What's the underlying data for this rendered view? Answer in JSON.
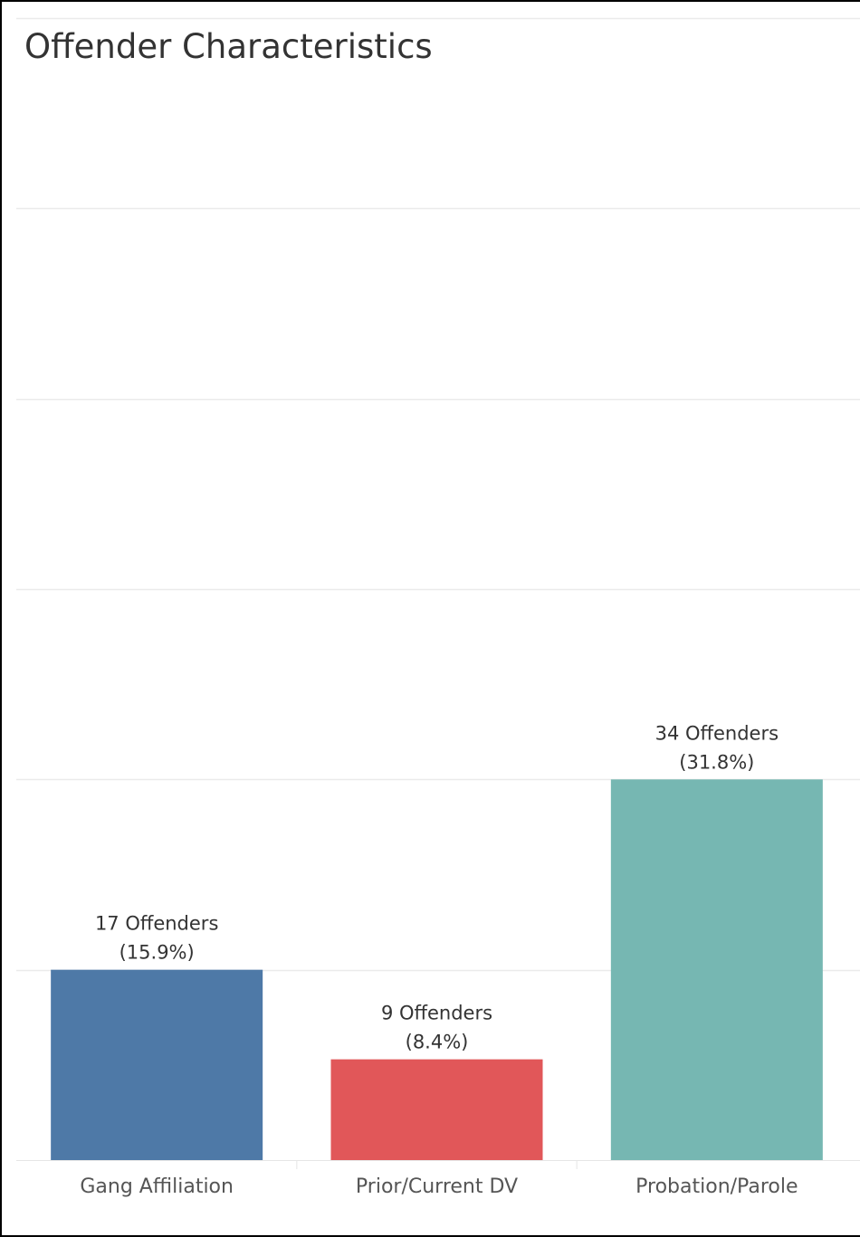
{
  "chart_data": {
    "type": "bar",
    "title": "Offender Characteristics",
    "xlabel": "",
    "ylabel": "",
    "ylim": [
      0,
      102
    ],
    "grid": true,
    "categories": [
      "Gang Affiliation",
      "Prior/Current DV",
      "Probation/Parole"
    ],
    "values": [
      17,
      9,
      34
    ],
    "labels": [
      [
        "17 Offenders",
        "(15.9%)"
      ],
      [
        "9 Offenders",
        "(8.4%)"
      ],
      [
        "34 Offenders",
        "(31.8%)"
      ]
    ],
    "colors": [
      "#4e79a7",
      "#e15759",
      "#76b7b2"
    ]
  }
}
